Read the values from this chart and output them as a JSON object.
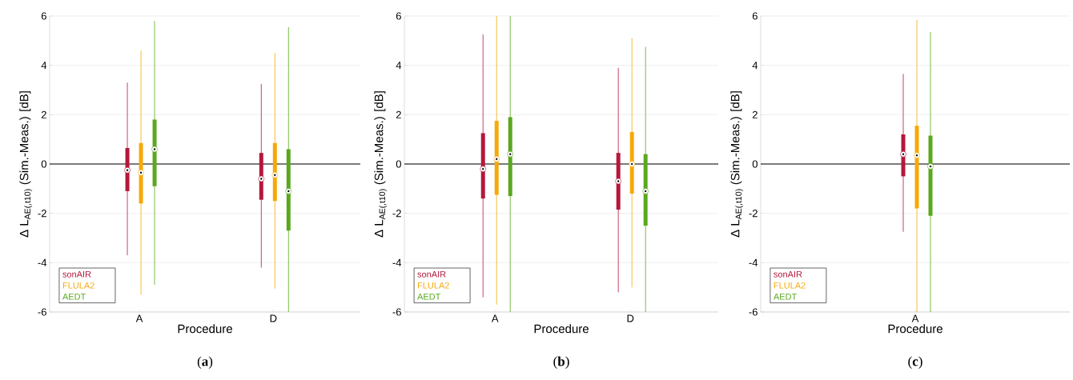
{
  "chart_data": [
    {
      "type": "box",
      "categories": [
        "A",
        "D"
      ],
      "xlabel": "Procedure",
      "ylabel": "Δ L$_{AE(,t10)}$ (Sim.-Meas.) [dB]",
      "ylim": [
        -6,
        6
      ],
      "yticks": [
        -6,
        -4,
        -2,
        0,
        2,
        4,
        6
      ],
      "grid": "y",
      "annotations": [
        "(**a**)"
      ],
      "ref_lines": [
        {
          "axis": "y",
          "value": 0,
          "color": "#000000"
        }
      ],
      "series": [
        {
          "name": "sonAIR",
          "color": "#b5173b",
          "boxes": [
            {
              "low": -3.7,
              "q1": -1.1,
              "median": -0.25,
              "q3": 0.65,
              "high": 3.3
            },
            {
              "low": -4.2,
              "q1": -1.45,
              "median": -0.6,
              "q3": 0.45,
              "high": 3.25
            }
          ]
        },
        {
          "name": "FLULA2",
          "color": "#f6a90a",
          "boxes": [
            {
              "low": -5.3,
              "q1": -1.6,
              "median": -0.35,
              "q3": 0.85,
              "high": 4.6
            },
            {
              "low": -5.05,
              "q1": -1.5,
              "median": -0.45,
              "q3": 0.85,
              "high": 4.5
            }
          ]
        },
        {
          "name": "AEDT",
          "color": "#5aa81e",
          "boxes": [
            {
              "low": -4.9,
              "q1": -0.9,
              "median": 0.6,
              "q3": 1.8,
              "high": 5.8
            },
            {
              "low": -6,
              "q1": -2.7,
              "median": -1.1,
              "q3": 0.6,
              "high": 5.55
            }
          ]
        }
      ]
    },
    {
      "type": "box",
      "categories": [
        "A",
        "D"
      ],
      "xlabel": "Procedure",
      "ylabel": "Δ L$_{AE(,t10)}$ (Sim.-Meas.) [dB]",
      "ylim": [
        -6,
        6
      ],
      "yticks": [
        -6,
        -4,
        -2,
        0,
        2,
        4,
        6
      ],
      "grid": "y",
      "annotations": [
        "(**b**)"
      ],
      "ref_lines": [
        {
          "axis": "y",
          "value": 0,
          "color": "#000000"
        }
      ],
      "series": [
        {
          "name": "sonAIR",
          "color": "#b5173b",
          "boxes": [
            {
              "low": -5.4,
              "q1": -1.4,
              "median": -0.2,
              "q3": 1.25,
              "high": 5.25
            },
            {
              "low": -5.2,
              "q1": -1.85,
              "median": -0.7,
              "q3": 0.45,
              "high": 3.9
            }
          ]
        },
        {
          "name": "FLULA2",
          "color": "#f6a90a",
          "boxes": [
            {
              "low": -5.7,
              "q1": -1.25,
              "median": 0.2,
              "q3": 1.75,
              "high": 6
            },
            {
              "low": -5.0,
              "q1": -1.2,
              "median": 0,
              "q3": 1.3,
              "high": 5.1
            }
          ]
        },
        {
          "name": "AEDT",
          "color": "#5aa81e",
          "boxes": [
            {
              "low": -6,
              "q1": -1.3,
              "median": 0.4,
              "q3": 1.9,
              "high": 6
            },
            {
              "low": -6,
              "q1": -2.5,
              "median": -1.1,
              "q3": 0.4,
              "high": 4.75
            }
          ]
        }
      ]
    },
    {
      "type": "box",
      "categories": [
        "A"
      ],
      "xlabel": "Procedure",
      "ylabel": "Δ L$_{AE(,t10)}$ (Sim.-Meas.) [dB]",
      "ylim": [
        -6,
        6
      ],
      "yticks": [
        -6,
        -4,
        -2,
        0,
        2,
        4,
        6
      ],
      "grid": "y",
      "annotations": [
        "(**c**)"
      ],
      "ref_lines": [
        {
          "axis": "y",
          "value": 0,
          "color": "#000000"
        }
      ],
      "series": [
        {
          "name": "sonAIR",
          "color": "#b5173b",
          "boxes": [
            {
              "low": -2.75,
              "q1": -0.5,
              "median": 0.4,
              "q3": 1.2,
              "high": 3.65
            }
          ]
        },
        {
          "name": "FLULA2",
          "color": "#f6a90a",
          "boxes": [
            {
              "low": -6,
              "q1": -1.8,
              "median": 0.35,
              "q3": 1.55,
              "high": 5.85
            }
          ]
        },
        {
          "name": "AEDT",
          "color": "#5aa81e",
          "boxes": [
            {
              "low": -6,
              "q1": -2.1,
              "median": -0.1,
              "q3": 1.15,
              "high": 5.35
            }
          ]
        }
      ]
    }
  ]
}
